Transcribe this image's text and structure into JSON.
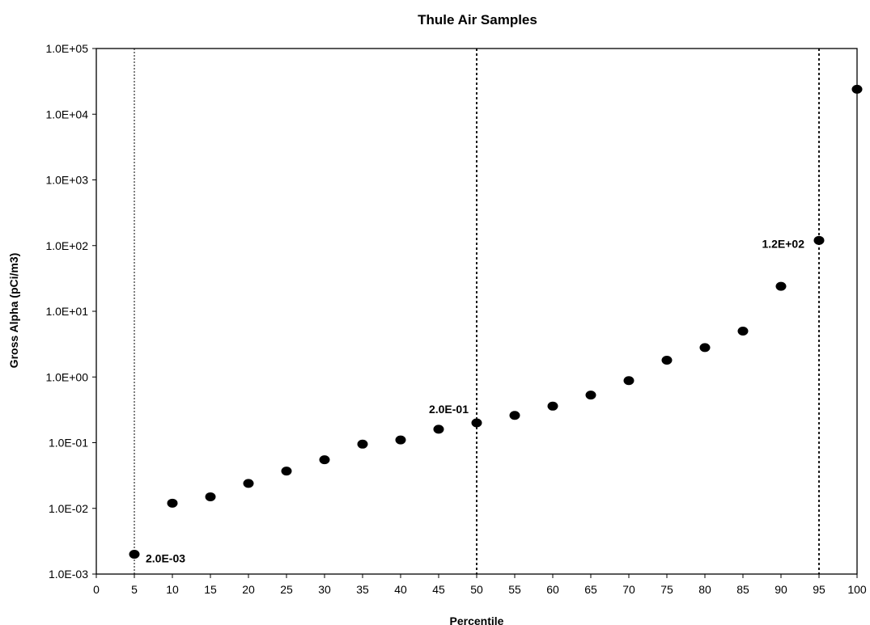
{
  "chart_data": {
    "type": "scatter",
    "title": "Thule Air Samples",
    "xlabel": "Percentile",
    "ylabel": "Gross Alpha (pCi/m3)",
    "xlim": [
      0,
      100
    ],
    "x_ticks": [
      0,
      5,
      10,
      15,
      20,
      25,
      30,
      35,
      40,
      45,
      50,
      55,
      60,
      65,
      70,
      75,
      80,
      85,
      90,
      95,
      100
    ],
    "ylim": [
      0.001,
      100000
    ],
    "y_scale": "log",
    "y_ticks": [
      "1.0E-03",
      "1.0E-02",
      "1.0E-01",
      "1.0E+00",
      "1.0E+01",
      "1.0E+02",
      "1.0E+03",
      "1.0E+04",
      "1.0E+05"
    ],
    "grid": false,
    "legend": "none",
    "marker_color": "#000000",
    "points": [
      {
        "x": 5,
        "y": 0.002
      },
      {
        "x": 10,
        "y": 0.012
      },
      {
        "x": 15,
        "y": 0.015
      },
      {
        "x": 20,
        "y": 0.024
      },
      {
        "x": 25,
        "y": 0.037
      },
      {
        "x": 30,
        "y": 0.055
      },
      {
        "x": 35,
        "y": 0.095
      },
      {
        "x": 40,
        "y": 0.11
      },
      {
        "x": 45,
        "y": 0.16
      },
      {
        "x": 50,
        "y": 0.2
      },
      {
        "x": 55,
        "y": 0.26
      },
      {
        "x": 60,
        "y": 0.36
      },
      {
        "x": 65,
        "y": 0.53
      },
      {
        "x": 70,
        "y": 0.88
      },
      {
        "x": 75,
        "y": 1.8
      },
      {
        "x": 80,
        "y": 2.8
      },
      {
        "x": 85,
        "y": 5
      },
      {
        "x": 90,
        "y": 24
      },
      {
        "x": 95,
        "y": 120
      },
      {
        "x": 100,
        "y": 24000
      }
    ],
    "reference_lines": [
      {
        "x": 5,
        "style": "dotted"
      },
      {
        "x": 50,
        "style": "dotted"
      },
      {
        "x": 95,
        "style": "dotted"
      }
    ],
    "annotations": [
      {
        "x": 5,
        "y": 0.002,
        "text": "2.0E-03",
        "side": "right"
      },
      {
        "x": 50,
        "y": 0.2,
        "text": "2.0E-01",
        "side": "above-left"
      },
      {
        "x": 95,
        "y": 120,
        "text": "1.2E+02",
        "side": "left"
      }
    ]
  }
}
